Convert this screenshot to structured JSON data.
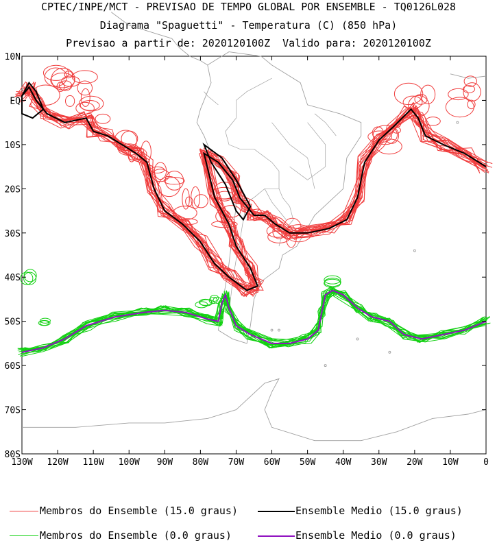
{
  "title": {
    "line1": "CPTEC/INPE/MCT - PREVISAO DE TEMPO GLOBAL POR ENSEMBLE - TQ0126L028",
    "line2": "Diagrama \"Spaguetti\" - Temperatura (C) (850 hPa)",
    "line3": "Previsao a partir de: 2020120100Z  Valido para: 2020120100Z"
  },
  "map": {
    "lat_labels": [
      "10N",
      "EQ",
      "10S",
      "20S",
      "30S",
      "40S",
      "50S",
      "60S",
      "70S",
      "80S"
    ],
    "lon_labels": [
      "130W",
      "120W",
      "110W",
      "100W",
      "90W",
      "80W",
      "70W",
      "60W",
      "50W",
      "40W",
      "30W",
      "20W",
      "10W",
      "0"
    ],
    "lat_range": [
      -80,
      10
    ],
    "lon_range": [
      -130,
      0
    ]
  },
  "legend": {
    "members_15": "Membros do Ensemble (15.0 graus)",
    "mean_15": "Ensemble Medio (15.0 graus)",
    "members_0": "Membros do Ensemble (0.0 graus)",
    "mean_0": "Ensemble Medio (0.0 graus)"
  },
  "colors": {
    "members_15": "#f03c3c",
    "mean_15": "#000000",
    "members_0": "#10d010",
    "mean_0": "#9010c0",
    "coast": "#a0a0a0"
  }
}
